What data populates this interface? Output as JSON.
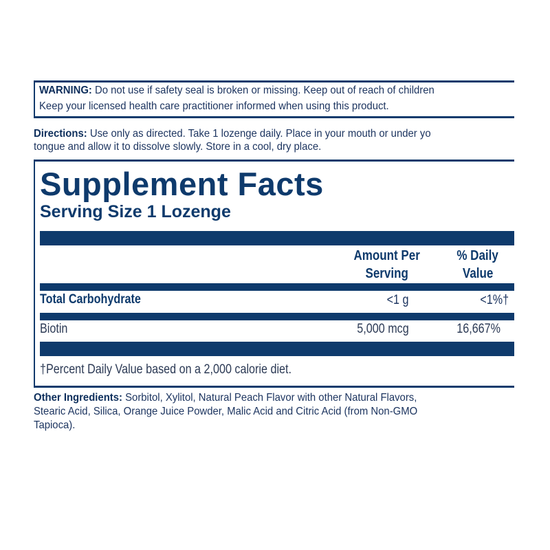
{
  "warning": {
    "label": "WARNING:",
    "line1": " Do not use if safety seal is broken or missing. Keep out of reach of children",
    "line2": "Keep your licensed health care practitioner informed when using this product."
  },
  "directions": {
    "label": "Directions:",
    "line1": " Use only as directed. Take 1 lozenge daily. Place in your mouth or under yo",
    "line2": "tongue and allow it to dissolve slowly. Store in a cool, dry place."
  },
  "facts": {
    "title": "Supplement Facts",
    "serving_size": "Serving Size 1 Lozenge",
    "columns": {
      "amount_1": "Amount Per",
      "amount_2": "Serving",
      "dv_1": "% Daily",
      "dv_2": "Value"
    },
    "rows": [
      {
        "name": "Total Carbohydrate",
        "amount": "<1 g",
        "dv": "<1%†"
      },
      {
        "name": "Biotin",
        "amount": "5,000 mcg",
        "dv": "16,667%"
      }
    ],
    "footnote": "†Percent Daily Value based on a 2,000 calorie diet."
  },
  "other_ingredients": {
    "label": "Other Ingredients:",
    "line1": " Sorbitol, Xylitol, Natural Peach Flavor with other Natural Flavors,",
    "line2": "Stearic Acid, Silica, Orange Juice Powder, Malic Acid and Citric Acid (from Non-GMO",
    "line3": "Tapioca)."
  },
  "colors": {
    "navy": "#0e3a6c",
    "text": "#1d3560"
  }
}
